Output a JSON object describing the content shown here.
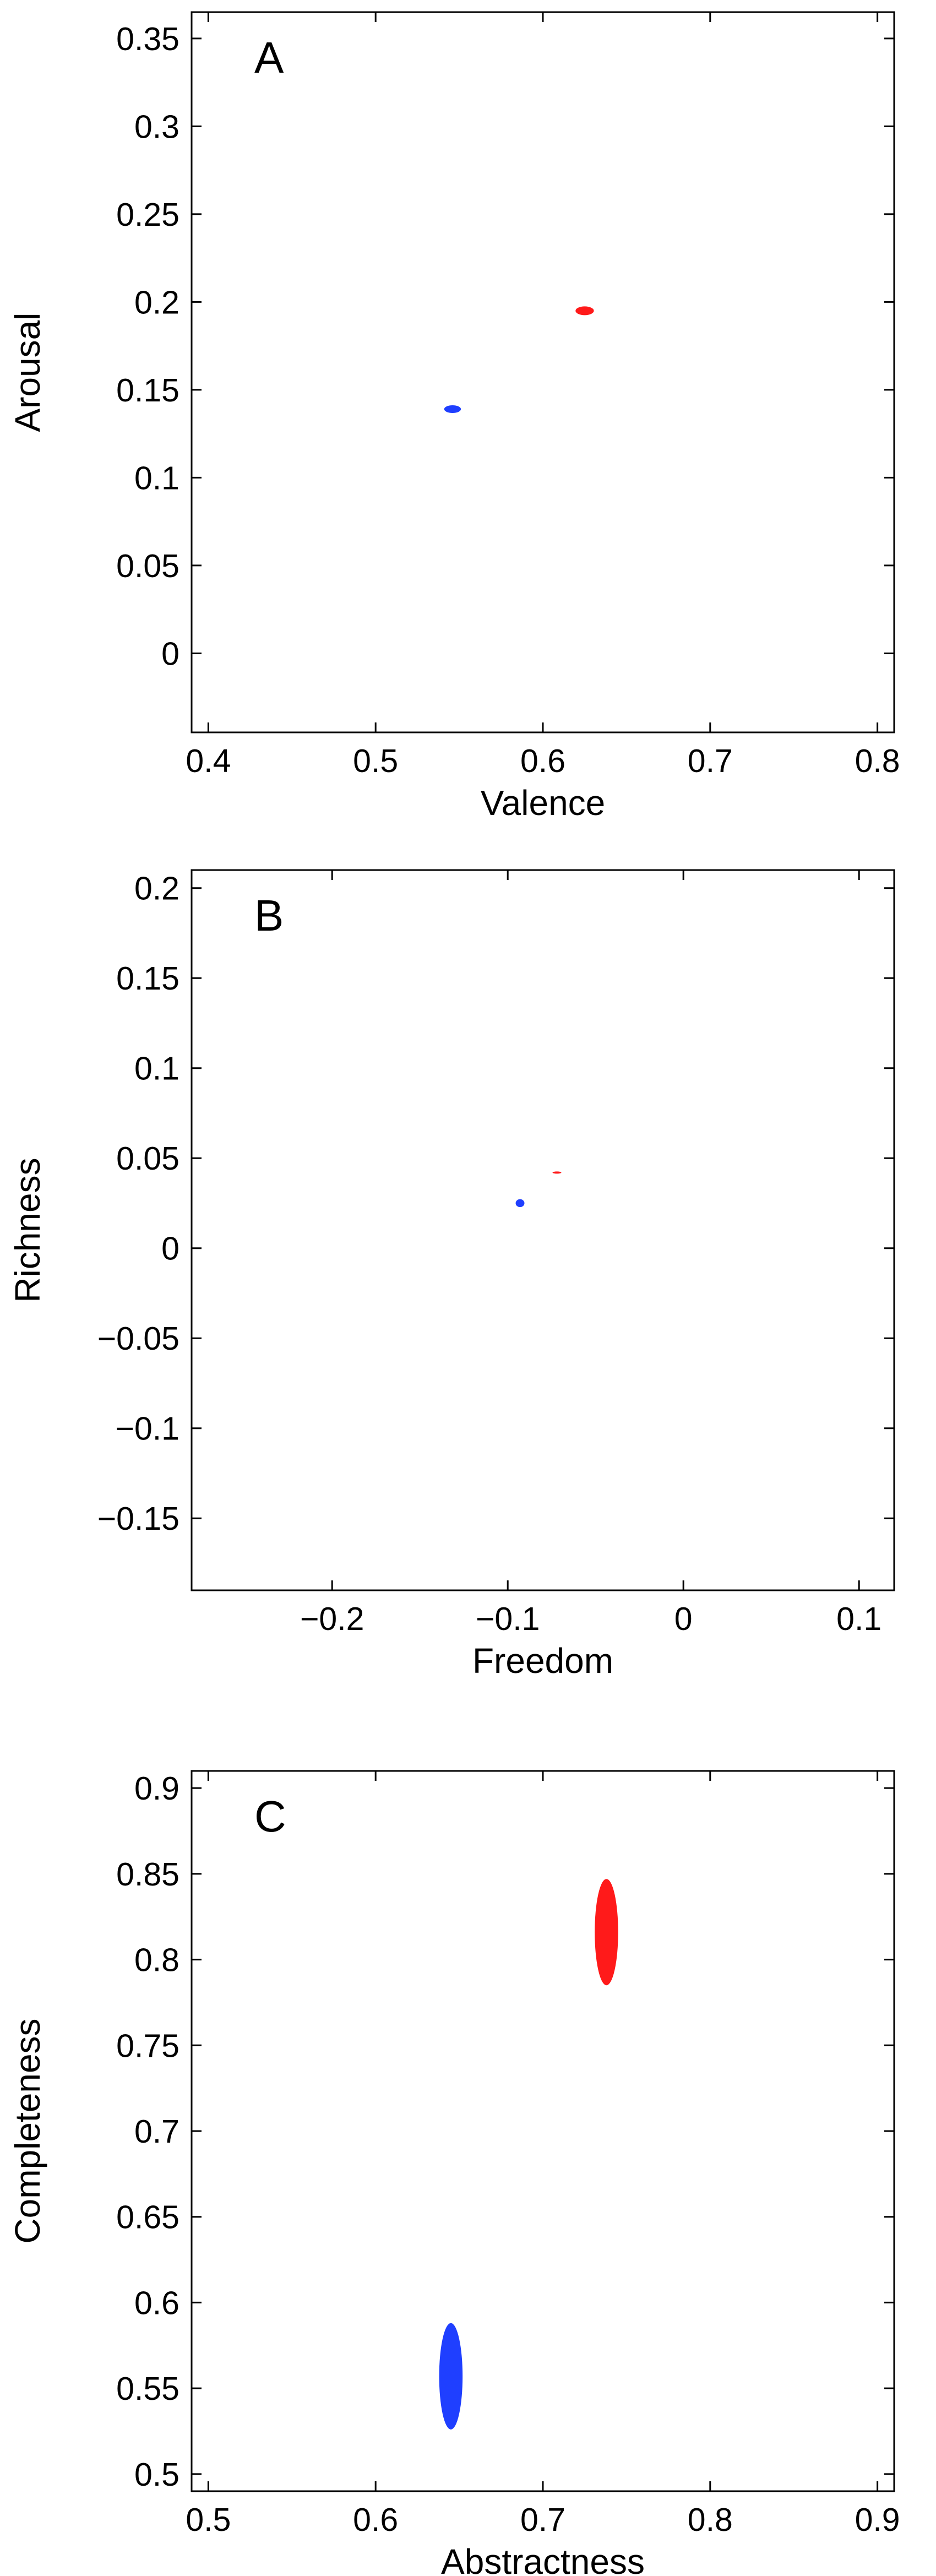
{
  "chart_data": [
    {
      "type": "scatter",
      "panel_label": "A",
      "xlabel": "Valence",
      "ylabel": "Arousal",
      "xlim": [
        0.39,
        0.81
      ],
      "ylim": [
        -0.045,
        0.365
      ],
      "xticks": [
        0.4,
        0.5,
        0.6,
        0.7,
        0.8
      ],
      "xtick_labels": [
        "0.4",
        "0.5",
        "0.6",
        "0.7",
        "0.8"
      ],
      "yticks": [
        0,
        0.05,
        0.1,
        0.15,
        0.2,
        0.25,
        0.3,
        0.35
      ],
      "ytick_labels": [
        "0",
        "0.05",
        "0.1",
        "0.15",
        "0.2",
        "0.25",
        "0.3",
        "0.35"
      ],
      "grid": false,
      "series": [
        {
          "color": "#1f3fff",
          "x": 0.546,
          "y": 0.139,
          "rx": 0.005,
          "ry": 0.0022
        },
        {
          "color": "#ff1a1a",
          "x": 0.625,
          "y": 0.195,
          "rx": 0.0055,
          "ry": 0.0025
        }
      ]
    },
    {
      "type": "scatter",
      "panel_label": "B",
      "xlabel": "Freedom",
      "ylabel": "Richness",
      "xlim": [
        -0.28,
        0.12
      ],
      "ylim": [
        -0.19,
        0.21
      ],
      "xticks": [
        -0.2,
        -0.1,
        0,
        0.1
      ],
      "xtick_labels": [
        "−0.2",
        "−0.1",
        "0",
        "0.1"
      ],
      "yticks": [
        -0.15,
        -0.1,
        -0.05,
        0,
        0.05,
        0.1,
        0.15,
        0.2
      ],
      "ytick_labels": [
        "−0.15",
        "−0.1",
        "−0.05",
        "0",
        "0.05",
        "0.1",
        "0.15",
        "0.2"
      ],
      "grid": false,
      "series": [
        {
          "color": "#1f3fff",
          "x": -0.093,
          "y": 0.025,
          "rx": 0.0025,
          "ry": 0.0022
        },
        {
          "color": "#ff1a1a",
          "x": -0.072,
          "y": 0.042,
          "rx": 0.0025,
          "ry": 0.0006
        }
      ]
    },
    {
      "type": "scatter",
      "panel_label": "C",
      "xlabel": "Abstractness",
      "ylabel": "Completeness",
      "xlim": [
        0.49,
        0.91
      ],
      "ylim": [
        0.49,
        0.91
      ],
      "xticks": [
        0.5,
        0.6,
        0.7,
        0.8,
        0.9
      ],
      "xtick_labels": [
        "0.5",
        "0.6",
        "0.7",
        "0.8",
        "0.9"
      ],
      "yticks": [
        0.5,
        0.55,
        0.6,
        0.65,
        0.7,
        0.75,
        0.8,
        0.85,
        0.9
      ],
      "ytick_labels": [
        "0.5",
        "0.55",
        "0.6",
        "0.65",
        "0.7",
        "0.75",
        "0.8",
        "0.85",
        "0.9"
      ],
      "grid": false,
      "series": [
        {
          "color": "#1f3fff",
          "x": 0.645,
          "y": 0.557,
          "rx": 0.007,
          "ry": 0.031
        },
        {
          "color": "#ff1a1a",
          "x": 0.738,
          "y": 0.816,
          "rx": 0.007,
          "ry": 0.031
        }
      ]
    }
  ]
}
